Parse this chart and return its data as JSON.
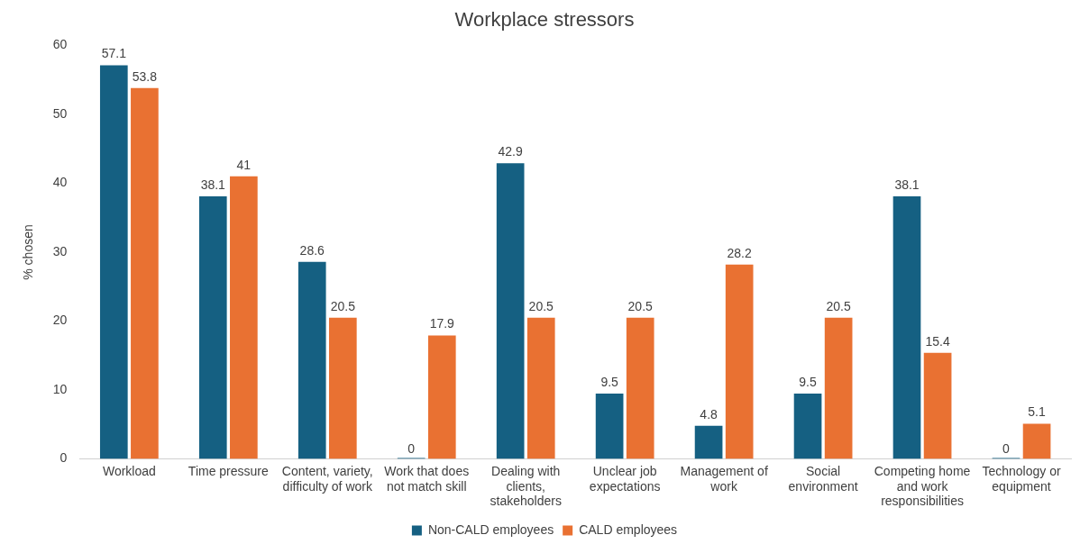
{
  "chart_data": {
    "type": "bar",
    "title": "Workplace stressors",
    "ylabel": "% chosen",
    "categories": [
      "Workload",
      "Time pressure",
      "Content, variety, difficulty of work",
      "Work that does not match skill",
      "Dealing with clients, stakeholders",
      "Unclear job expectations",
      "Management of work",
      "Social environment",
      "Competing home and work responsibilities",
      "Technology or equipment"
    ],
    "series": [
      {
        "name": "Non-CALD employees",
        "color": "#156082",
        "values": [
          57.1,
          38.1,
          28.6,
          0,
          42.9,
          9.5,
          4.8,
          9.5,
          38.1,
          0
        ]
      },
      {
        "name": "CALD employees",
        "color": "#e97132",
        "values": [
          53.8,
          41,
          20.5,
          17.9,
          20.5,
          20.5,
          28.2,
          20.5,
          15.4,
          5.1
        ]
      }
    ],
    "ylim": [
      0,
      60
    ],
    "yticks": [
      0,
      10,
      20,
      30,
      40,
      50,
      60
    ],
    "grid": false,
    "legend": "bottom",
    "data_labels": true
  }
}
